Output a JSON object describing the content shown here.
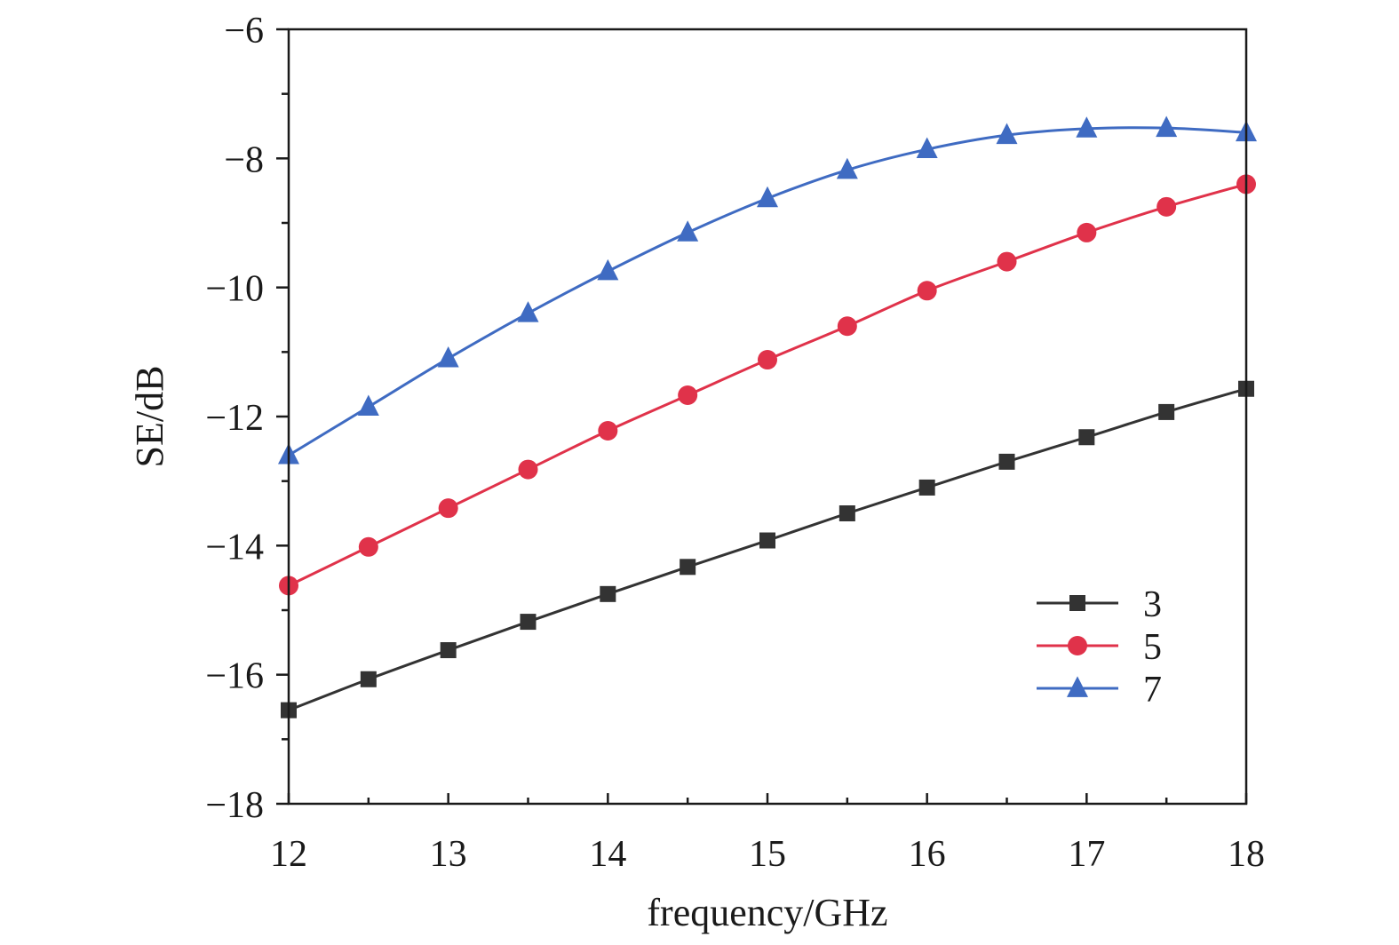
{
  "chart_data": {
    "type": "line",
    "title": "",
    "xlabel": "frequency/GHz",
    "ylabel": "SE/dB",
    "xlim": [
      12,
      18
    ],
    "ylim": [
      -18,
      -6
    ],
    "x_ticks": [
      {
        "value": 12,
        "label": "12"
      },
      {
        "value": 13,
        "label": "13"
      },
      {
        "value": 14,
        "label": "14"
      },
      {
        "value": 15,
        "label": "15"
      },
      {
        "value": 16,
        "label": "16"
      },
      {
        "value": 17,
        "label": "17"
      },
      {
        "value": 18,
        "label": "18"
      }
    ],
    "y_ticks": [
      {
        "value": -6,
        "label": "−6"
      },
      {
        "value": -8,
        "label": "−8"
      },
      {
        "value": -10,
        "label": "−10"
      },
      {
        "value": -12,
        "label": "−12"
      },
      {
        "value": -14,
        "label": "−14"
      },
      {
        "value": -16,
        "label": "−16"
      },
      {
        "value": -18,
        "label": "−18"
      }
    ],
    "grid": false,
    "legend_position": "bottom-right",
    "x": [
      12,
      12.5,
      13,
      13.5,
      14,
      14.5,
      15,
      15.5,
      16,
      16.5,
      17,
      17.5,
      18
    ],
    "series": [
      {
        "name": "3",
        "color": "#333333",
        "marker": "square",
        "values": [
          -16.55,
          -16.07,
          -15.62,
          -15.18,
          -14.75,
          -14.33,
          -13.92,
          -13.5,
          -13.1,
          -12.7,
          -12.32,
          -11.93,
          -11.57
        ]
      },
      {
        "name": "5",
        "color": "#e0324a",
        "marker": "circle",
        "values": [
          -14.62,
          -14.02,
          -13.42,
          -12.82,
          -12.22,
          -11.67,
          -11.12,
          -10.6,
          -10.05,
          -9.6,
          -9.15,
          -8.75,
          -8.4
        ]
      },
      {
        "name": "7",
        "color": "#3f6bc2",
        "marker": "triangle",
        "values": [
          -12.6,
          -11.85,
          -11.1,
          -10.4,
          -9.75,
          -9.15,
          -8.62,
          -8.18,
          -7.86,
          -7.64,
          -7.54,
          -7.53,
          -7.6
        ]
      }
    ]
  }
}
